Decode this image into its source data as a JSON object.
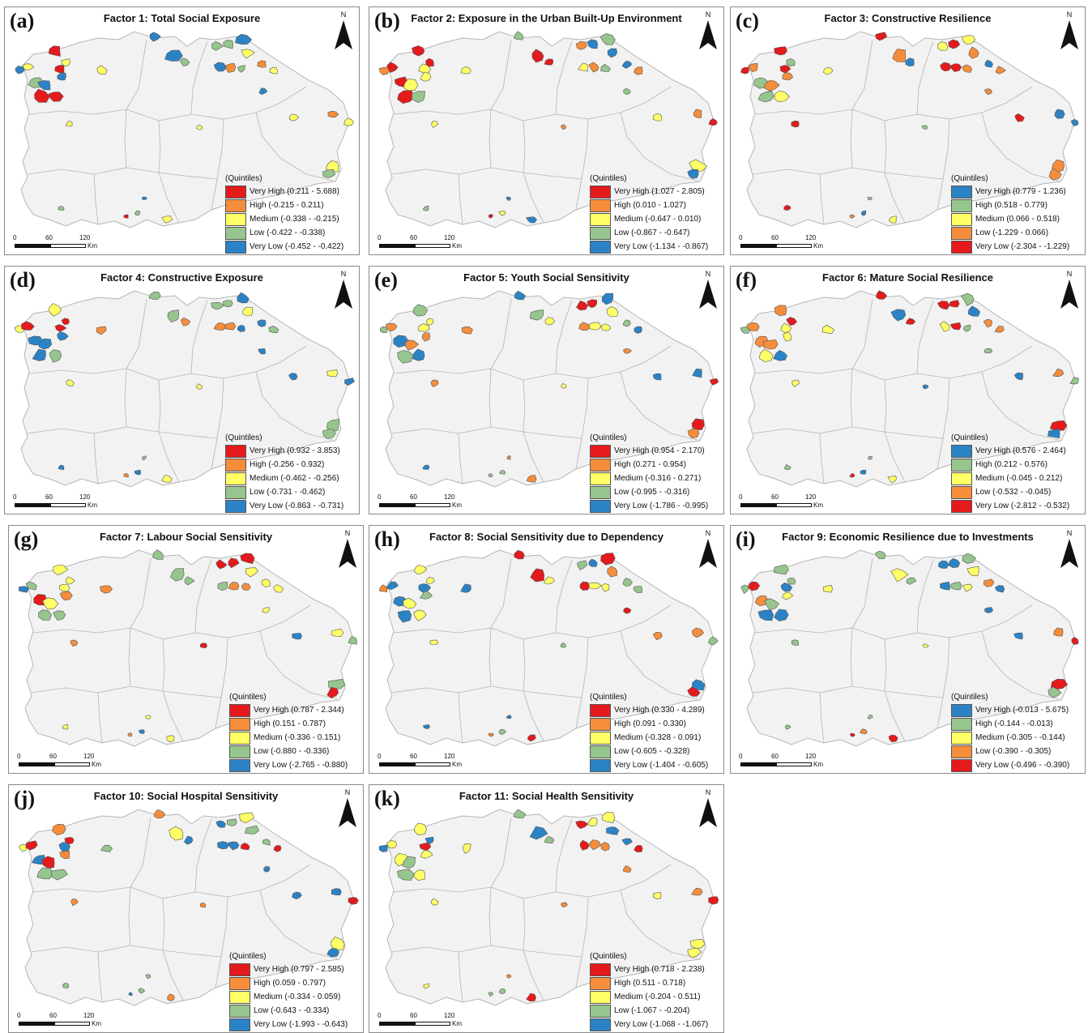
{
  "colors": {
    "very_high_risk": "#e41a1c",
    "high_risk": "#f58d3b",
    "medium": "#ffff66",
    "low_risk": "#96c58d",
    "very_low_risk": "#2b83c6",
    "base_fill": "#f2f2f2",
    "boundary": "#b5b5b5"
  },
  "north_label": "N",
  "legend_title": "(Quintiles)",
  "scale": {
    "n0": "0",
    "n1": "60",
    "n2": "120",
    "unit": "Km"
  },
  "panels": [
    {
      "letter": "(a)",
      "title": "Factor 1: Total Social Exposure",
      "reverse": false,
      "variant": 0,
      "items": [
        {
          "label": "Very High (0.211 - 5.688)"
        },
        {
          "label": "High (-0.215 - 0.211)"
        },
        {
          "label": "Medium (-0.338 - -0.215)"
        },
        {
          "label": "Low (-0.422 - -0.338)"
        },
        {
          "label": "Very Low (-0.452 - -0.422)"
        }
      ]
    },
    {
      "letter": "(b)",
      "title": "Factor 2: Exposure in the Urban Built-Up Environment",
      "reverse": false,
      "variant": 1,
      "items": [
        {
          "label": "Very High (1.027 - 2.805)"
        },
        {
          "label": "High (0.010 - 1.027)"
        },
        {
          "label": "Medium (-0.647 - 0.010)"
        },
        {
          "label": "Low (-0.867 - -0.647)"
        },
        {
          "label": "Very Low (-1.134 - -0.867)"
        }
      ]
    },
    {
      "letter": "(c)",
      "title": "Factor 3: Constructive Resilience",
      "reverse": true,
      "variant": 2,
      "items": [
        {
          "label": "Very High (0.779 - 1.236)"
        },
        {
          "label": "High (0.518 - 0.779)"
        },
        {
          "label": "Medium (0.066 - 0.518)"
        },
        {
          "label": "Low (-1.229 - 0.066)"
        },
        {
          "label": "Very Low (-2.304 - -1.229)"
        }
      ]
    },
    {
      "letter": "(d)",
      "title": "Factor 4: Constructive Exposure",
      "reverse": false,
      "variant": 3,
      "items": [
        {
          "label": "Very High (0.932 - 3.853)"
        },
        {
          "label": "High (-0.256 - 0.932)"
        },
        {
          "label": "Medium (-0.462 - -0.256)"
        },
        {
          "label": "Low (-0.731 - -0.462)"
        },
        {
          "label": "Very Low (-0.863 - -0.731)"
        }
      ]
    },
    {
      "letter": "(e)",
      "title": "Factor 5: Youth Social Sensitivity",
      "reverse": false,
      "variant": 4,
      "items": [
        {
          "label": "Very High (0.954 - 2.170)"
        },
        {
          "label": "High (0.271 - 0.954)"
        },
        {
          "label": "Medium (-0.316 - 0.271)"
        },
        {
          "label": "Low (-0.995 - -0.316)"
        },
        {
          "label": "Very Low (-1.786 - -0.995)"
        }
      ]
    },
    {
      "letter": "(f)",
      "title": "Factor 6: Mature Social Resilience",
      "reverse": true,
      "variant": 5,
      "items": [
        {
          "label": "Very High (0.576 - 2.464)"
        },
        {
          "label": "High (0.212 - 0.576)"
        },
        {
          "label": "Medium (-0.045 - 0.212)"
        },
        {
          "label": "Low (-0.532 - -0.045)"
        },
        {
          "label": "Very Low (-2.812 - -0.532)"
        }
      ]
    },
    {
      "letter": "(g)",
      "title": "Factor 7: Labour Social Sensitivity",
      "reverse": false,
      "variant": 6,
      "items": [
        {
          "label": "Very High (0.787 - 2.344)"
        },
        {
          "label": "High (0.151 - 0.787)"
        },
        {
          "label": "Medium (-0.336 - 0.151)"
        },
        {
          "label": "Low (-0.880 - -0.336)"
        },
        {
          "label": "Very Low (-2.765 - -0.880)"
        }
      ]
    },
    {
      "letter": "(h)",
      "title": "Factor 8: Social Sensitivity due to Dependency",
      "reverse": false,
      "variant": 7,
      "items": [
        {
          "label": "Very High (0.330 - 4.289)"
        },
        {
          "label": "High (0.091 - 0.330)"
        },
        {
          "label": "Medium (-0.328 - 0.091)"
        },
        {
          "label": "Low (-0.605 - -0.328)"
        },
        {
          "label": "Very Low (-1.404 - -0.605)"
        }
      ]
    },
    {
      "letter": "(i)",
      "title": "Factor 9: Economic Resilience due to Investments",
      "reverse": true,
      "variant": 8,
      "items": [
        {
          "label": "Very High (-0.013 - 5.675)"
        },
        {
          "label": "High (-0.144 - -0.013)"
        },
        {
          "label": "Medium (-0.305 - -0.144)"
        },
        {
          "label": "Low (-0.390 - -0.305)"
        },
        {
          "label": "Very Low (-0.496 - -0.390)"
        }
      ]
    },
    {
      "letter": "(j)",
      "title": "Factor 10: Social Hospital Sensitivity",
      "reverse": false,
      "variant": 9,
      "items": [
        {
          "label": "Very High (0.797 - 2.585)"
        },
        {
          "label": "High (0.059 - 0.797)"
        },
        {
          "label": "Medium (-0.334 - 0.059)"
        },
        {
          "label": "Low (-0.643 - -0.334)"
        },
        {
          "label": "Very Low (-1.993 - -0.643)"
        }
      ]
    },
    {
      "letter": "(k)",
      "title": "Factor 11: Social Health Sensitivity",
      "reverse": false,
      "variant": 10,
      "items": [
        {
          "label": "Very High (0.718 - 2.238)"
        },
        {
          "label": "High (0.511 - 0.718)"
        },
        {
          "label": "Medium (-0.204 - 0.511)"
        },
        {
          "label": "Low (-1.067 - -0.204)"
        },
        {
          "label": "Very Low (-1.068 - -1.067)"
        }
      ]
    }
  ]
}
